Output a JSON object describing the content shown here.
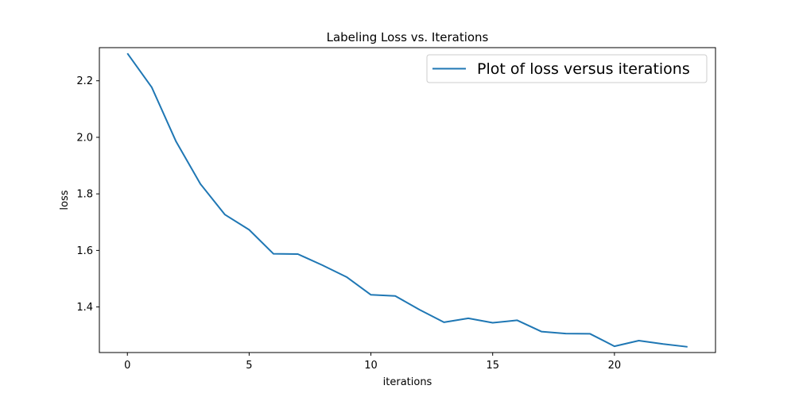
{
  "chart_data": {
    "type": "line",
    "title": "Labeling Loss vs. Iterations",
    "xlabel": "iterations",
    "ylabel": "loss",
    "x": [
      0,
      1,
      2,
      3,
      4,
      5,
      6,
      7,
      8,
      9,
      10,
      11,
      12,
      13,
      14,
      15,
      16,
      17,
      18,
      19,
      20,
      21,
      22,
      23
    ],
    "series": [
      {
        "name": "Plot of loss versus iterations",
        "color": "#1f77b4",
        "values": [
          2.297,
          2.177,
          1.985,
          1.835,
          1.727,
          1.673,
          1.588,
          1.587,
          1.548,
          1.506,
          1.443,
          1.439,
          1.39,
          1.346,
          1.36,
          1.344,
          1.353,
          1.313,
          1.306,
          1.305,
          1.261,
          1.281,
          1.269,
          1.259
        ]
      }
    ],
    "xlim": [
      -1.15,
      24.15
    ],
    "ylim": [
      1.2388,
      2.3172
    ],
    "xticks": [
      0,
      5,
      10,
      15,
      20
    ],
    "xtick_labels": [
      "0",
      "5",
      "10",
      "15",
      "20"
    ],
    "yticks": [
      1.4,
      1.6,
      1.8,
      2.0,
      2.2
    ],
    "ytick_labels": [
      "1.4",
      "1.6",
      "1.8",
      "2.0",
      "2.2"
    ],
    "grid": false,
    "legend_position": "top-right"
  }
}
